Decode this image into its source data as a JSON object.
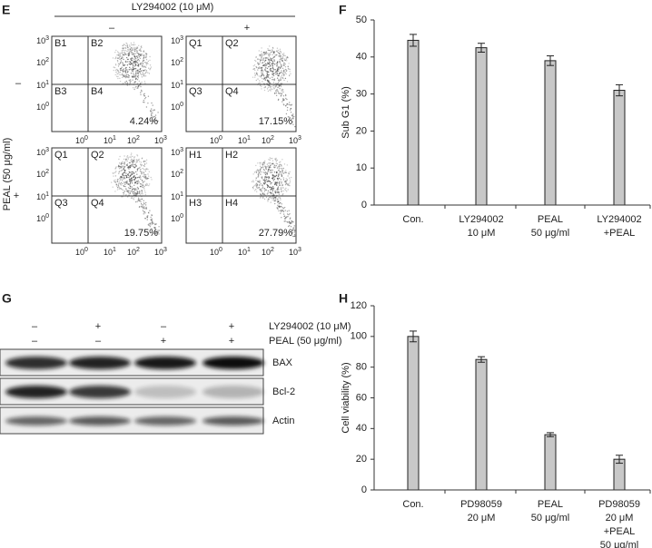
{
  "panel_e": {
    "label": "E",
    "header": "LY294002 (10 μM)",
    "column_signs": [
      "–",
      "+"
    ],
    "row_label": "PEAL (50 μg/ml)",
    "row_signs": [
      "–",
      "+"
    ],
    "axis_base": "10",
    "axis_exponents": [
      "0",
      "1",
      "2",
      "3"
    ],
    "plots": [
      {
        "quadrants": [
          "B1",
          "B2",
          "B3",
          "B4"
        ],
        "percent": "4.24%"
      },
      {
        "quadrants": [
          "Q1",
          "Q2",
          "Q3",
          "Q4"
        ],
        "percent": "17.15%"
      },
      {
        "quadrants": [
          "Q1",
          "Q2",
          "Q3",
          "Q4"
        ],
        "percent": "19.75%"
      },
      {
        "quadrants": [
          "H1",
          "H2",
          "H3",
          "H4"
        ],
        "percent": "27.79%"
      }
    ]
  },
  "panel_g": {
    "label": "G",
    "treatments": [
      {
        "name": "LY294002 (10 μM)",
        "signs": [
          "–",
          "+",
          "–",
          "+"
        ]
      },
      {
        "name": "PEAL (50 μg/ml)",
        "signs": [
          "–",
          "–",
          "+",
          "+"
        ]
      }
    ],
    "blots": [
      "BAX",
      "Bcl-2",
      "Actin"
    ]
  },
  "chart_data": [
    {
      "type": "bar",
      "panel_label": "F",
      "y_label": "Sub G1 (%)",
      "categories": [
        [
          "Con."
        ],
        [
          "LY294002",
          "10 μM"
        ],
        [
          "PEAL",
          "50 μg/ml"
        ],
        [
          "LY294002",
          "+PEAL"
        ]
      ],
      "values": [
        44.5,
        42.5,
        39,
        31
      ],
      "errors": [
        1.6,
        1.2,
        1.3,
        1.5
      ],
      "color": "#c8c8c8",
      "ylim": [
        0,
        50
      ],
      "yticks": [
        0,
        10,
        20,
        30,
        40,
        50
      ]
    },
    {
      "type": "bar",
      "panel_label": "H",
      "y_label": "Cell viability (%)",
      "categories": [
        [
          "Con."
        ],
        [
          "PD98059",
          "20 μM"
        ],
        [
          "PEAL",
          "50 μg/ml"
        ],
        [
          "PD98059",
          "20 μM",
          "+PEAL",
          "50 μg/ml"
        ]
      ],
      "values": [
        100,
        85,
        36,
        20
      ],
      "errors": [
        3.5,
        1.8,
        1.3,
        2.6
      ],
      "color": "#c8c8c8",
      "ylim": [
        0,
        120
      ],
      "yticks": [
        0,
        20,
        40,
        60,
        80,
        100,
        120
      ]
    }
  ]
}
